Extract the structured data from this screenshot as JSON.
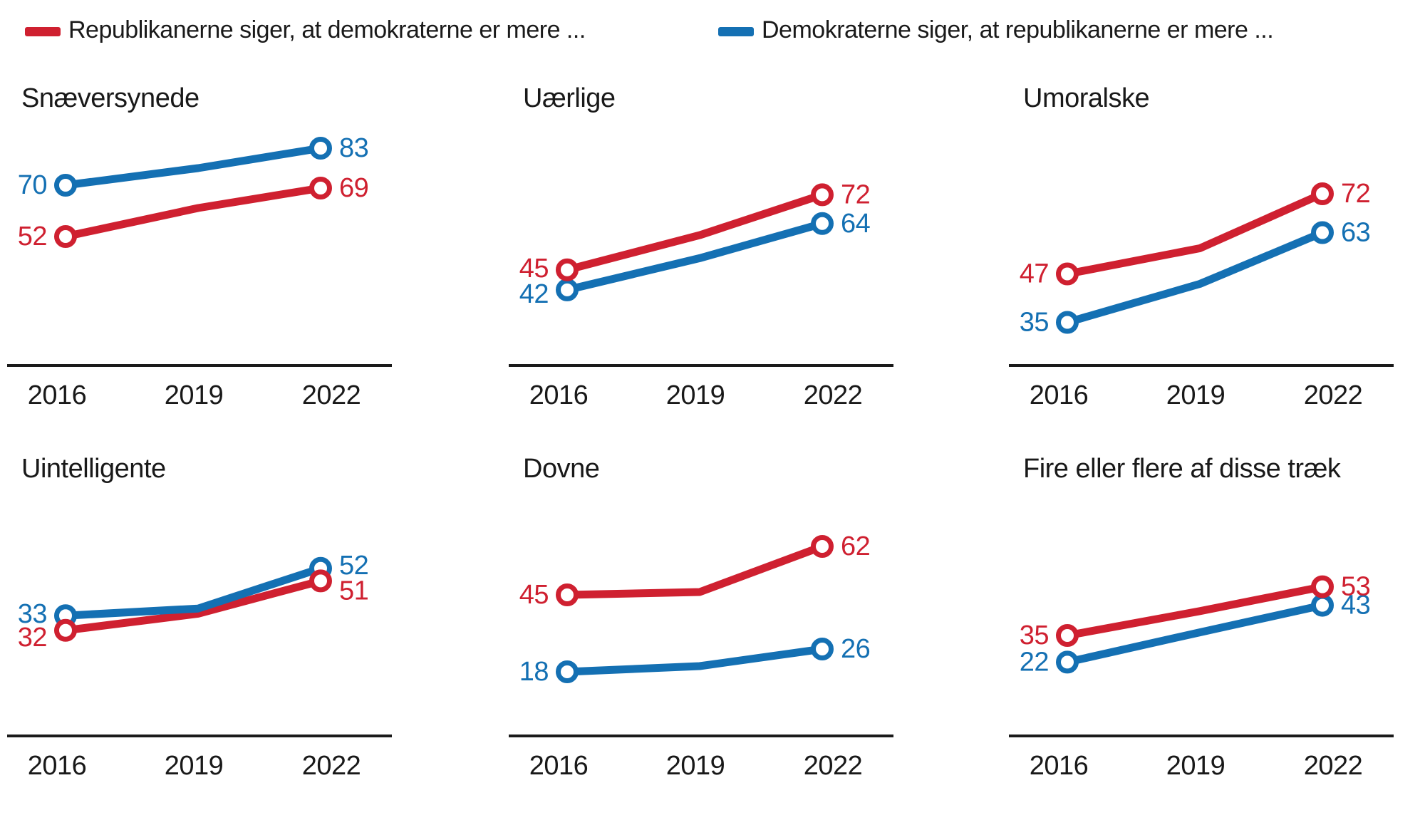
{
  "legend": {
    "republicans": {
      "label": "Republikanerne siger, at demokraterne er mere ...",
      "color": "#cf2030"
    },
    "democrats": {
      "label": "Demokraterne siger, at republikanerne er mere ...",
      "color": "#1470b3"
    }
  },
  "colors": {
    "republicans": "#cf2030",
    "democrats": "#1470b3",
    "text": "#1a1a1a",
    "axis": "#1a1a1a",
    "background": "#ffffff"
  },
  "chart_data": {
    "type": "line",
    "x": [
      2016,
      2019,
      2022
    ],
    "x_tick_labels": [
      "2016",
      "2019",
      "2022"
    ],
    "labeled_years": [
      2016,
      2022
    ],
    "estimated_years_note": "2019 values are not labeled in the figure; they are estimated from the line bend positions",
    "legend_position": "top",
    "grid": false,
    "marker_style": "open-circle at 2016 and 2022 only",
    "series_names": {
      "rep": "Republikanerne siger, at demokraterne er mere ...",
      "dem": "Demokraterne siger, at republikanerne er mere ..."
    },
    "panels": [
      {
        "title": "Snæversynede",
        "slug": "snaeversynede",
        "rep": [
          52,
          62,
          69
        ],
        "dem": [
          70,
          76,
          83
        ]
      },
      {
        "title": "Uærlige",
        "slug": "uaerlige",
        "rep": [
          45,
          58,
          72
        ],
        "dem": [
          42,
          52,
          64
        ]
      },
      {
        "title": "Umoralske",
        "slug": "umoralske",
        "rep": [
          47,
          55,
          72
        ],
        "dem": [
          35,
          47,
          63
        ]
      },
      {
        "title": "Uintelligente",
        "slug": "uintelligente",
        "rep": [
          32,
          36,
          51
        ],
        "dem": [
          33,
          38,
          52
        ]
      },
      {
        "title": "Dovne",
        "slug": "dovne",
        "rep": [
          45,
          46,
          62
        ],
        "dem": [
          18,
          20,
          26
        ]
      },
      {
        "title": "Fire eller flere af disse træk",
        "slug": "fire-eller-flere-af-disse-traek",
        "rep": [
          35,
          44,
          53
        ],
        "dem": [
          22,
          33,
          43
        ]
      }
    ]
  }
}
